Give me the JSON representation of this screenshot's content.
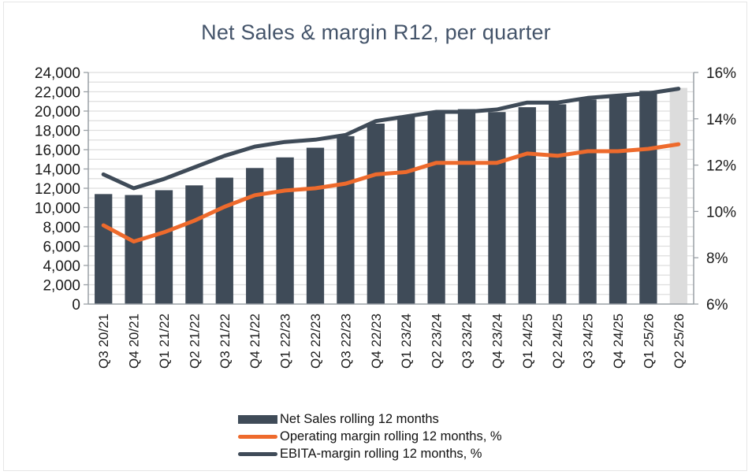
{
  "colors": {
    "bar": "#3f4b58",
    "bar_highlight": "#dcdcdc",
    "operating_line": "#ee6a2c",
    "ebita_line": "#3f4b58",
    "grid": "#dedede",
    "axis": "#9aa0a6",
    "title": "#44546a"
  },
  "chart_data": {
    "type": "bar",
    "title": "Net Sales & margin R12, per quarter",
    "xlabel": "",
    "ylabel": "",
    "ylim": [
      0,
      24000
    ],
    "y2lim": [
      6,
      16
    ],
    "grid": true,
    "legend_position": "bottom",
    "yticks": [
      "0",
      "2,000",
      "4,000",
      "6,000",
      "8,000",
      "10,000",
      "12,000",
      "14,000",
      "16,000",
      "18,000",
      "20,000",
      "22,000",
      "24,000"
    ],
    "y2ticks": [
      "6%",
      "8%",
      "10%",
      "12%",
      "14%",
      "16%"
    ],
    "categories": [
      "Q3 20/21",
      "Q4 20/21",
      "Q1 21/22",
      "Q2 21/22",
      "Q3 21/22",
      "Q4 21/22",
      "Q1 22/23",
      "Q2 22/23",
      "Q3 22/23",
      "Q4 22/23",
      "Q1 23/24",
      "Q2 23/24",
      "Q3 23/24",
      "Q4 23/24",
      "Q1 24/25",
      "Q2 24/25",
      "Q3 24/25",
      "Q4 24/25",
      "Q1 25/26",
      "Q2 25/26"
    ],
    "highlighted_category": "Q2 25/26",
    "series": [
      {
        "name": "Net Sales rolling 12 months",
        "type": "bar",
        "axis": "left",
        "values": [
          11400,
          11300,
          11800,
          12300,
          13100,
          14100,
          15200,
          16200,
          17400,
          18700,
          19400,
          19900,
          20200,
          19900,
          20400,
          20700,
          21200,
          21600,
          22100,
          22400
        ]
      },
      {
        "name": "Operating margin rolling 12 months, %",
        "type": "line",
        "axis": "right",
        "values": [
          9.4,
          8.7,
          9.1,
          9.6,
          10.2,
          10.7,
          10.9,
          11.0,
          11.2,
          11.6,
          11.7,
          12.1,
          12.1,
          12.1,
          12.5,
          12.4,
          12.6,
          12.6,
          12.7,
          12.9
        ]
      },
      {
        "name": "EBITA-margin rolling 12 months, %",
        "type": "line",
        "axis": "right",
        "values": [
          11.6,
          11.0,
          11.4,
          11.9,
          12.4,
          12.8,
          13.0,
          13.1,
          13.3,
          13.9,
          14.1,
          14.3,
          14.3,
          14.4,
          14.7,
          14.7,
          14.9,
          15.0,
          15.1,
          15.3
        ]
      }
    ]
  }
}
